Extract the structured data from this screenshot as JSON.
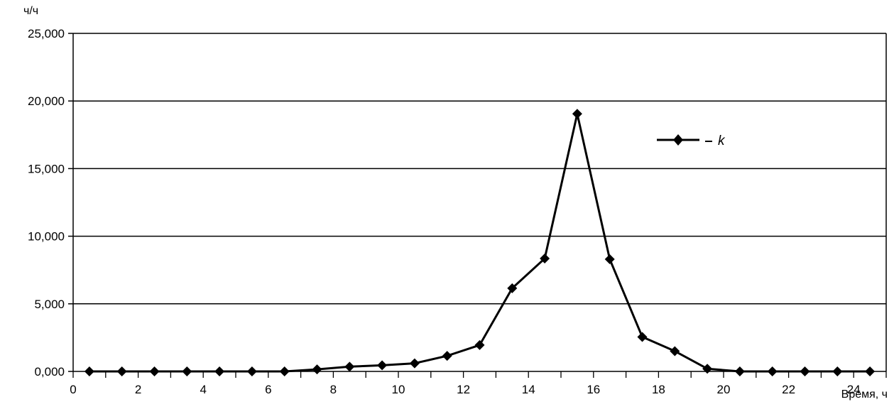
{
  "chart_data": {
    "type": "line",
    "ylabel": "ч/ч",
    "xlabel": "Время, ч",
    "xlim": [
      0,
      25
    ],
    "ylim": [
      0,
      25000
    ],
    "x_ticks": [
      "0",
      "2",
      "4",
      "6",
      "8",
      "10",
      "12",
      "14",
      "16",
      "18",
      "20",
      "22",
      "24"
    ],
    "y_ticks": [
      "0,000",
      "5,000",
      "10,000",
      "15,000",
      "20,000",
      "25,000"
    ],
    "grid": "horizontal",
    "legend_position": "top-right",
    "series": [
      {
        "name": "k",
        "color": "#000000",
        "marker": "diamond",
        "x": [
          0.5,
          1.5,
          2.5,
          3.5,
          4.5,
          5.5,
          6.5,
          7.5,
          8.5,
          9.5,
          10.5,
          11.5,
          12.5,
          13.5,
          14.5,
          15.5,
          16.5,
          17.5,
          18.5,
          19.5,
          20.5,
          21.5,
          22.5,
          23.5,
          24.5
        ],
        "y": [
          0,
          0,
          0,
          0,
          0,
          0,
          0,
          150,
          350,
          450,
          600,
          1150,
          1950,
          6150,
          8350,
          19050,
          8300,
          2550,
          1500,
          200,
          0,
          0,
          0,
          0,
          0
        ]
      }
    ]
  }
}
